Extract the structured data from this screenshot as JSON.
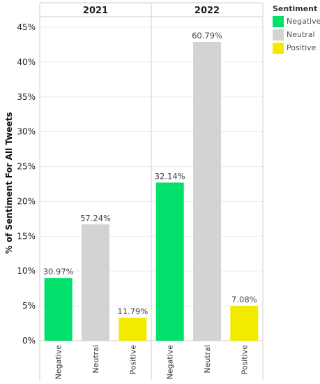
{
  "chart_data": {
    "type": "bar",
    "ylabel": "% of Sentiment For All Tweets",
    "y_ticks": [
      "0%",
      "5%",
      "10%",
      "15%",
      "20%",
      "25%",
      "30%",
      "35%",
      "40%",
      "45%"
    ],
    "ylim": [
      0,
      46.5
    ],
    "grid": true,
    "legend_position": "top-right",
    "panels": [
      {
        "header": "2021",
        "categories": [
          "Negative",
          "Neutral",
          "Positive"
        ],
        "values": [
          9.0,
          16.7,
          3.3
        ],
        "data_labels": [
          "30.97%",
          "57.24%",
          "11.79%"
        ]
      },
      {
        "header": "2022",
        "categories": [
          "Negative",
          "Neutral",
          "Positive"
        ],
        "values": [
          22.7,
          42.9,
          5.0
        ],
        "data_labels": [
          "32.14%",
          "60.79%",
          "7.08%"
        ]
      }
    ],
    "legend": {
      "title": "Sentiment",
      "items": [
        {
          "label": "Negative",
          "color": "#00e06a"
        },
        {
          "label": "Neutral",
          "color": "#d3d3d3"
        },
        {
          "label": "Positive",
          "color": "#f2eb00"
        }
      ]
    }
  }
}
